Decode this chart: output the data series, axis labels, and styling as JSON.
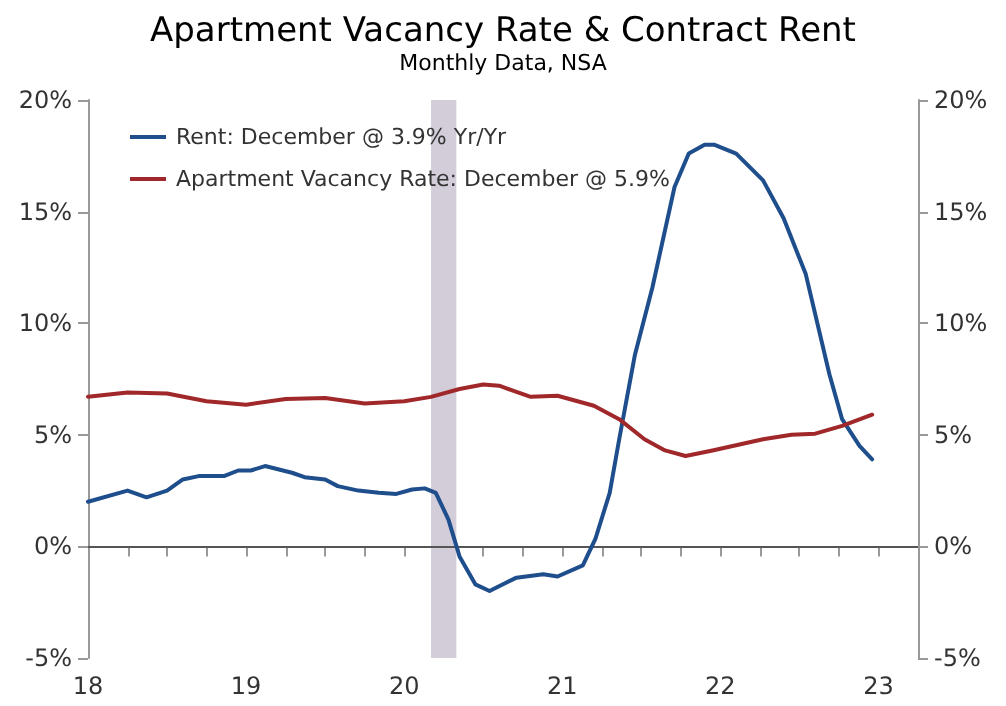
{
  "chart_data": {
    "type": "line",
    "title": "Apartment Vacancy Rate & Contract Rent",
    "subtitle": "Monthly Data, NSA",
    "xlim": [
      18,
      23.25
    ],
    "xticks": [
      18,
      {
        "value": 18.25,
        "label": null
      },
      {
        "value": 18.5,
        "label": null
      },
      {
        "value": 18.75,
        "label": null
      },
      19,
      {
        "value": 19.25,
        "label": null
      },
      {
        "value": 19.5,
        "label": null
      },
      {
        "value": 19.75,
        "label": null
      },
      20,
      {
        "value": 20.25,
        "label": null
      },
      {
        "value": 20.5,
        "label": null
      },
      {
        "value": 20.75,
        "label": null
      },
      21,
      {
        "value": 21.25,
        "label": null
      },
      {
        "value": 21.5,
        "label": null
      },
      {
        "value": 21.75,
        "label": null
      },
      22,
      {
        "value": 22.25,
        "label": null
      },
      {
        "value": 22.5,
        "label": null
      },
      {
        "value": 22.75,
        "label": null
      },
      23
    ],
    "ylim": [
      -5,
      20
    ],
    "yticks": [
      {
        "value": -5,
        "label": "-5%"
      },
      {
        "value": 0,
        "label": "0%"
      },
      {
        "value": 5,
        "label": "5%"
      },
      {
        "value": 10,
        "label": "10%"
      },
      {
        "value": 15,
        "label": "15%"
      },
      {
        "value": 20,
        "label": "20%"
      }
    ],
    "y2lim": [
      -5,
      20
    ],
    "y2ticks": [
      {
        "value": -5,
        "label": "-5%"
      },
      {
        "value": 0,
        "label": "0%"
      },
      {
        "value": 5,
        "label": "5%"
      },
      {
        "value": 10,
        "label": "10%"
      },
      {
        "value": 15,
        "label": "15%"
      },
      {
        "value": 20,
        "label": "20%"
      }
    ],
    "series": [
      {
        "name": "Rent: December @ 3.9% Yr/Yr",
        "color": "#1f4e8c",
        "x": [
          18.0,
          18.25,
          18.37,
          18.5,
          18.6,
          18.7,
          18.86,
          18.95,
          19.03,
          19.12,
          19.29,
          19.37,
          19.5,
          19.58,
          19.71,
          19.84,
          19.95,
          20.05,
          20.13,
          20.2,
          20.28,
          20.35,
          20.45,
          20.54,
          20.71,
          20.88,
          20.97,
          21.13,
          21.21,
          21.3,
          21.36,
          21.46,
          21.57,
          21.71,
          21.8,
          21.9,
          21.96,
          22.1,
          22.27,
          22.4,
          22.54,
          22.69,
          22.77,
          22.88,
          22.96
        ],
        "values": [
          2.0,
          2.5,
          2.2,
          2.5,
          3.0,
          3.15,
          3.15,
          3.4,
          3.4,
          3.6,
          3.3,
          3.1,
          3.0,
          2.7,
          2.5,
          2.4,
          2.35,
          2.55,
          2.6,
          2.4,
          1.2,
          -0.45,
          -1.7,
          -2.0,
          -1.4,
          -1.25,
          -1.35,
          -0.85,
          0.35,
          2.4,
          4.8,
          8.6,
          11.6,
          16.1,
          17.6,
          18.0,
          18.0,
          17.6,
          16.4,
          14.7,
          12.2,
          7.7,
          5.7,
          4.5,
          3.9
        ]
      },
      {
        "name": "Apartment Vacancy Rate: December @ 5.9%",
        "color": "#a0282a",
        "x": [
          18.0,
          18.25,
          18.5,
          18.75,
          19.0,
          19.25,
          19.5,
          19.75,
          20.0,
          20.17,
          20.35,
          20.5,
          20.6,
          20.8,
          20.97,
          21.2,
          21.36,
          21.52,
          21.65,
          21.78,
          21.95,
          22.27,
          22.45,
          22.6,
          22.77,
          22.96
        ],
        "values": [
          6.7,
          6.9,
          6.85,
          6.5,
          6.35,
          6.6,
          6.65,
          6.4,
          6.5,
          6.7,
          7.05,
          7.25,
          7.2,
          6.7,
          6.75,
          6.3,
          5.7,
          4.8,
          4.3,
          4.05,
          4.3,
          4.8,
          5.0,
          5.05,
          5.4,
          5.9
        ]
      }
    ],
    "ref_lines": [
      {
        "axis": "y",
        "value": 0,
        "color": "#555555"
      }
    ],
    "bands": [
      {
        "axis": "x",
        "from": 20.17,
        "to": 20.33,
        "color": "#d3ccd9"
      }
    ],
    "legend": "top left",
    "grid": false,
    "marker": "none",
    "line_style": "solid"
  }
}
